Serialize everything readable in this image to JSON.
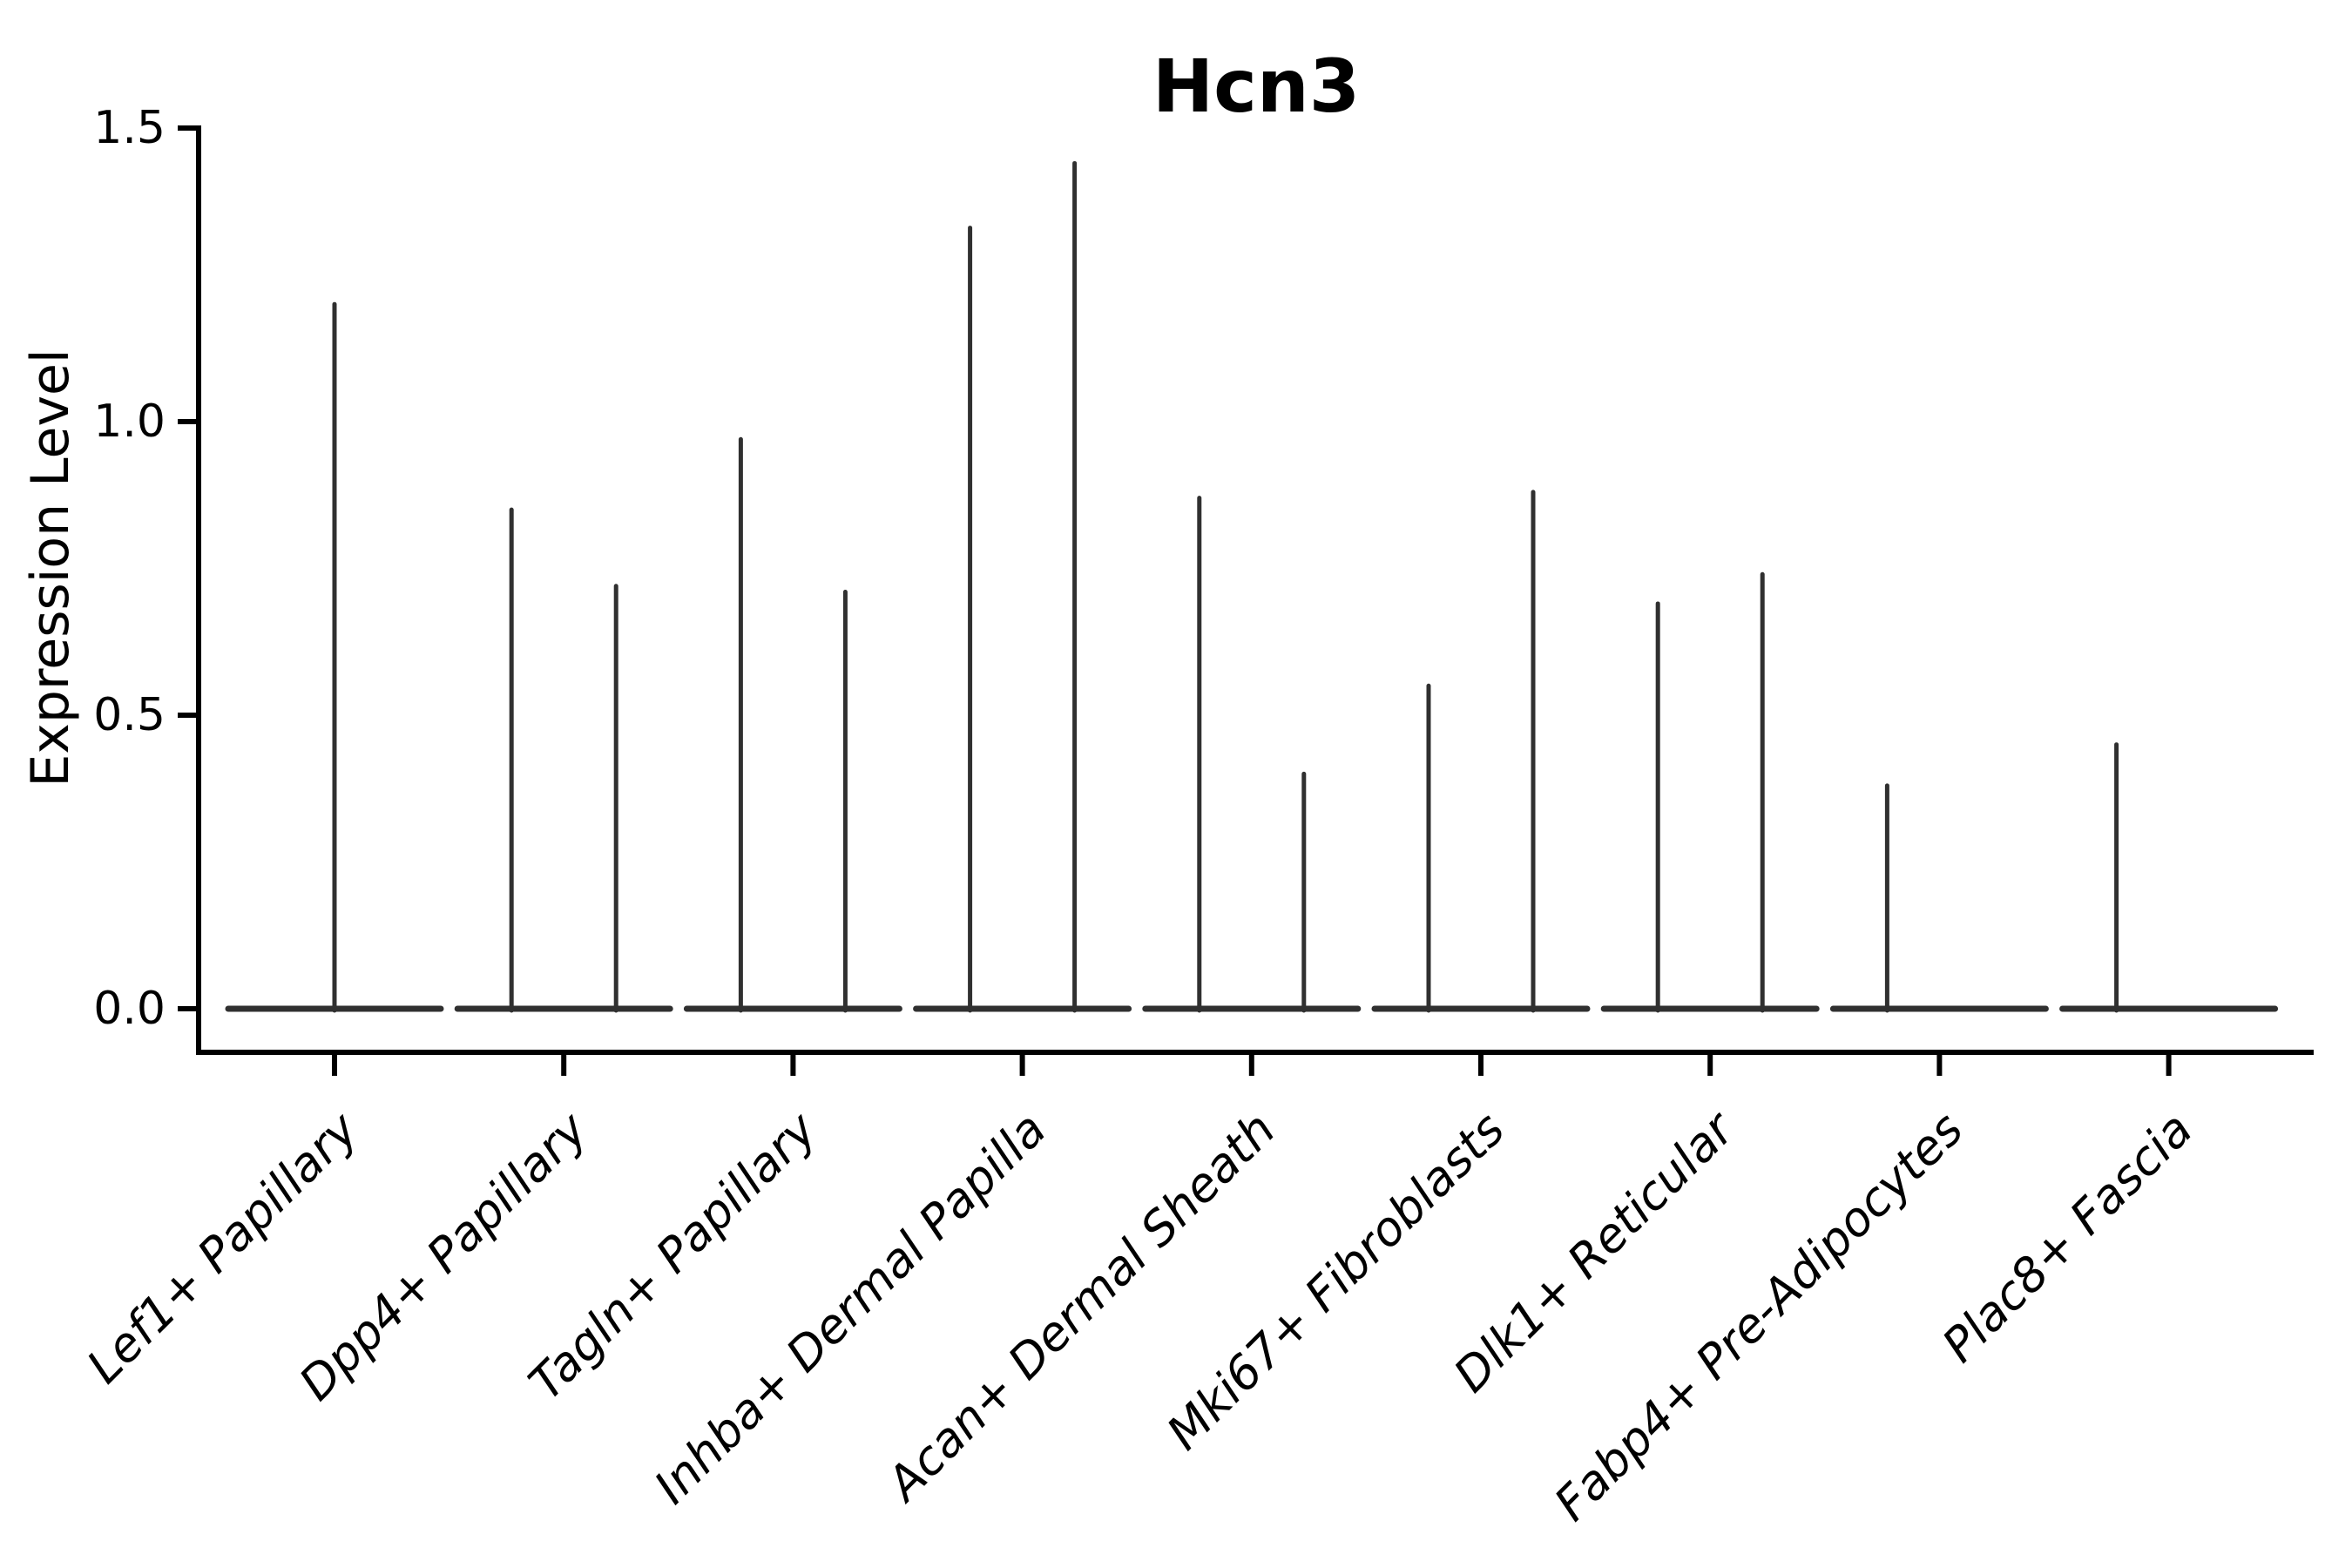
{
  "figure": {
    "background": "#ffffff"
  },
  "colors": {
    "violin": "#303030",
    "axis": "#000000",
    "text": "#000000"
  },
  "chart_data": {
    "type": "violin",
    "title": "Hcn3",
    "xlabel": "",
    "ylabel": "Expression Level",
    "ylim": [
      -0.075,
      1.5
    ],
    "yticks": [
      0.0,
      0.5,
      1.0,
      1.5
    ],
    "ytick_labels": [
      "0.0",
      "0.5",
      "1.0",
      "1.5"
    ],
    "grid": false,
    "legend": "none",
    "categories": [
      "Lef1+ Papillary",
      "Dpp4+ Papillary",
      "Tagln+ Papillary",
      "Inhba+ Dermal Papilla",
      "Acan+ Dermal Sheath",
      "Mki67+ Fibroblasts",
      "Dlk1+ Reticular",
      "Fabp4+ Pre-Adipocytes",
      "Plac8+ Fascia"
    ],
    "violins": [
      {
        "label": "Lef1+ Papillary",
        "spikes": [
          {
            "offset": 0.0,
            "max": 1.2
          }
        ]
      },
      {
        "label": "Dpp4+ Papillary",
        "spikes": [
          {
            "offset": -0.228,
            "max": 0.85
          },
          {
            "offset": 0.228,
            "max": 0.72
          }
        ]
      },
      {
        "label": "Tagln+ Papillary",
        "spikes": [
          {
            "offset": -0.228,
            "max": 0.97
          },
          {
            "offset": 0.228,
            "max": 0.71
          }
        ]
      },
      {
        "label": "Inhba+ Dermal Papilla",
        "spikes": [
          {
            "offset": -0.228,
            "max": 1.33
          },
          {
            "offset": 0.228,
            "max": 1.44
          }
        ]
      },
      {
        "label": "Acan+ Dermal Sheath",
        "spikes": [
          {
            "offset": -0.228,
            "max": 0.87
          },
          {
            "offset": 0.228,
            "max": 0.4
          }
        ]
      },
      {
        "label": "Mki67+ Fibroblasts",
        "spikes": [
          {
            "offset": -0.228,
            "max": 0.55
          },
          {
            "offset": 0.228,
            "max": 0.88
          }
        ]
      },
      {
        "label": "Dlk1+ Reticular",
        "spikes": [
          {
            "offset": -0.228,
            "max": 0.69
          },
          {
            "offset": 0.228,
            "max": 0.74
          }
        ]
      },
      {
        "label": "Fabp4+ Pre-Adipocytes",
        "spikes": [
          {
            "offset": -0.228,
            "max": 0.38
          }
        ]
      },
      {
        "label": "Plac8+ Fascia",
        "spikes": [
          {
            "offset": -0.228,
            "max": 0.45
          }
        ]
      }
    ],
    "baseline_value": 0.0,
    "note": "Each violin collapses to a thin vertical spike; density mass sits at 0 forming a flat wide base per category."
  }
}
